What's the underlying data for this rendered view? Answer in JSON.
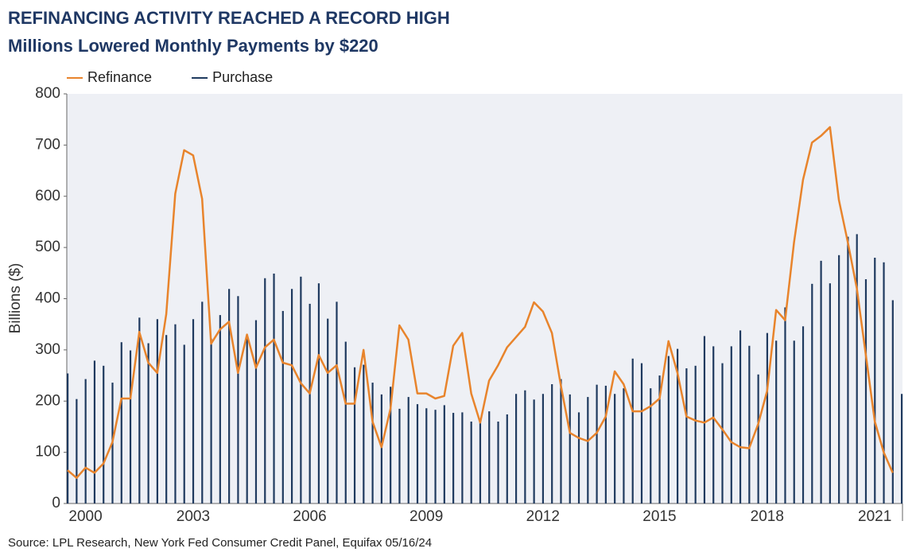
{
  "chart_data": {
    "type": "bar_line",
    "title": "REFINANCING ACTIVITY REACHED A RECORD HIGH",
    "subtitle": "Millions Lowered Monthly Payments by $220",
    "y_label": "Billions ($)",
    "source": "Source: LPL Research, New York Fed Consumer Credit Panel, Equifax 05/16/24",
    "categories": [
      null,
      null,
      "2000",
      null,
      null,
      null,
      null,
      null,
      null,
      null,
      null,
      null,
      null,
      null,
      "2003",
      null,
      null,
      null,
      null,
      null,
      null,
      null,
      null,
      null,
      null,
      null,
      null,
      "2006",
      null,
      null,
      null,
      null,
      null,
      null,
      null,
      null,
      null,
      null,
      null,
      null,
      "2009",
      null,
      null,
      null,
      null,
      null,
      null,
      null,
      null,
      null,
      null,
      null,
      null,
      "2012",
      null,
      null,
      null,
      null,
      null,
      null,
      null,
      null,
      null,
      null,
      null,
      null,
      "2015",
      null,
      null,
      null,
      null,
      null,
      null,
      null,
      null,
      null,
      null,
      null,
      "2018",
      null,
      null,
      null,
      null,
      null,
      null,
      null,
      null,
      null,
      null,
      null,
      "2021",
      null,
      null,
      null
    ],
    "series": [
      {
        "name": "Refinance",
        "color": "#e8842c",
        "kind": "line",
        "values": [
          65,
          50,
          70,
          60,
          78,
          120,
          205,
          205,
          335,
          275,
          255,
          370,
          605,
          690,
          680,
          595,
          312,
          340,
          355,
          255,
          330,
          265,
          305,
          320,
          275,
          270,
          235,
          215,
          290,
          255,
          270,
          195,
          195,
          300,
          160,
          110,
          185,
          348,
          320,
          215,
          215,
          205,
          210,
          308,
          333,
          215,
          158,
          240,
          270,
          305,
          325,
          345,
          393,
          375,
          333,
          230,
          138,
          128,
          122,
          138,
          170,
          258,
          233,
          180,
          180,
          190,
          205,
          317,
          255,
          170,
          162,
          158,
          168,
          145,
          120,
          110,
          108,
          155,
          220,
          378,
          358,
          510,
          632,
          705,
          718,
          735,
          593,
          510,
          420,
          290,
          160,
          100,
          60,
          null
        ]
      },
      {
        "name": "Purchase",
        "color": "#1f3a5f",
        "kind": "bar",
        "values": [
          254,
          204,
          243,
          279,
          269,
          236,
          315,
          299,
          363,
          313,
          360,
          329,
          350,
          310,
          360,
          394,
          322,
          368,
          419,
          405,
          330,
          358,
          440,
          449,
          376,
          419,
          443,
          390,
          430,
          361,
          394,
          316,
          266,
          271,
          236,
          213,
          228,
          185,
          208,
          194,
          186,
          183,
          192,
          177,
          178,
          160,
          160,
          180,
          160,
          174,
          214,
          221,
          203,
          214,
          233,
          243,
          213,
          178,
          208,
          232,
          230,
          214,
          225,
          283,
          274,
          225,
          250,
          288,
          302,
          264,
          269,
          327,
          307,
          274,
          307,
          338,
          308,
          252,
          333,
          318,
          383,
          318,
          346,
          429,
          474,
          430,
          485,
          521,
          526,
          438,
          480,
          471,
          397,
          214
        ]
      }
    ],
    "ylim": [
      0,
      800
    ],
    "yticks": [
      0,
      100,
      200,
      300,
      400,
      500,
      600,
      700,
      800
    ],
    "background": "#eef0f5"
  }
}
